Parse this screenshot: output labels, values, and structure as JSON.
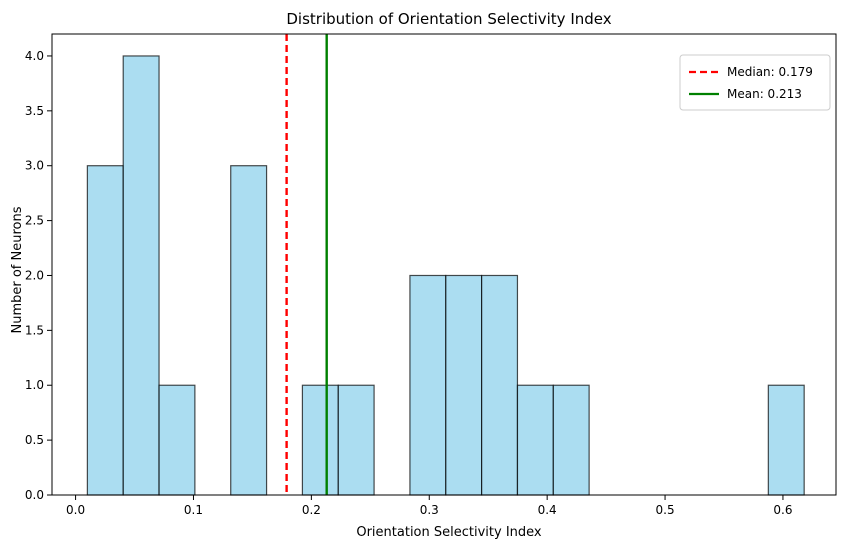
{
  "chart_data": {
    "type": "bar",
    "title": "Distribution of Orientation Selectivity Index",
    "xlabel": "Orientation Selectivity Index",
    "ylabel": "Number of Neurons",
    "xlim": [
      -0.02,
      0.645
    ],
    "ylim": [
      0,
      4.2
    ],
    "x_ticks": [
      {
        "value": 0.0,
        "label": "0.0"
      },
      {
        "value": 0.1,
        "label": "0.1"
      },
      {
        "value": 0.2,
        "label": "0.2"
      },
      {
        "value": 0.3,
        "label": "0.3"
      },
      {
        "value": 0.4,
        "label": "0.4"
      },
      {
        "value": 0.5,
        "label": "0.5"
      },
      {
        "value": 0.6,
        "label": "0.6"
      }
    ],
    "y_ticks": [
      {
        "value": 0.0,
        "label": "0.0"
      },
      {
        "value": 0.5,
        "label": "0.5"
      },
      {
        "value": 1.0,
        "label": "1.0"
      },
      {
        "value": 1.5,
        "label": "1.5"
      },
      {
        "value": 2.0,
        "label": "2.0"
      },
      {
        "value": 2.5,
        "label": "2.5"
      },
      {
        "value": 3.0,
        "label": "3.0"
      },
      {
        "value": 3.5,
        "label": "3.5"
      },
      {
        "value": 4.0,
        "label": "4.0"
      }
    ],
    "bins": [
      {
        "start": 0.01,
        "end": 0.0404,
        "count": 3
      },
      {
        "start": 0.0404,
        "end": 0.0708,
        "count": 4
      },
      {
        "start": 0.0708,
        "end": 0.1012,
        "count": 1
      },
      {
        "start": 0.1012,
        "end": 0.1316,
        "count": 0
      },
      {
        "start": 0.1316,
        "end": 0.162,
        "count": 3
      },
      {
        "start": 0.162,
        "end": 0.1924,
        "count": 0
      },
      {
        "start": 0.1924,
        "end": 0.2228,
        "count": 1
      },
      {
        "start": 0.2228,
        "end": 0.2532,
        "count": 1
      },
      {
        "start": 0.2532,
        "end": 0.2836,
        "count": 0
      },
      {
        "start": 0.2836,
        "end": 0.314,
        "count": 2
      },
      {
        "start": 0.314,
        "end": 0.3444,
        "count": 2
      },
      {
        "start": 0.3444,
        "end": 0.3748,
        "count": 2
      },
      {
        "start": 0.3748,
        "end": 0.4052,
        "count": 1
      },
      {
        "start": 0.4052,
        "end": 0.4356,
        "count": 1
      },
      {
        "start": 0.4356,
        "end": 0.466,
        "count": 0
      },
      {
        "start": 0.466,
        "end": 0.4964,
        "count": 0
      },
      {
        "start": 0.4964,
        "end": 0.5268,
        "count": 0
      },
      {
        "start": 0.5268,
        "end": 0.5572,
        "count": 0
      },
      {
        "start": 0.5572,
        "end": 0.5876,
        "count": 0
      },
      {
        "start": 0.5876,
        "end": 0.618,
        "count": 1
      }
    ],
    "reference_lines": [
      {
        "label": "Median: 0.179",
        "x": 0.179,
        "color": "#ff0000",
        "style": "dashed"
      },
      {
        "label": "Mean: 0.213",
        "x": 0.213,
        "color": "#008000",
        "style": "solid"
      }
    ],
    "legend_position": "top-right",
    "grid": false,
    "colors": {
      "bar_fill": "#87ceeb",
      "bar_edge": "#000000"
    }
  }
}
